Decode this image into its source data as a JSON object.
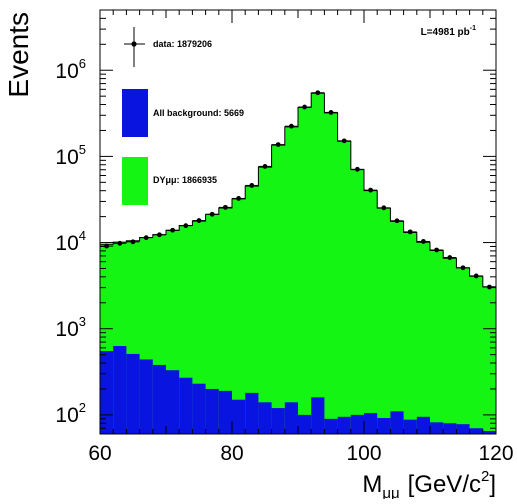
{
  "chart_data": {
    "type": "bar",
    "title": "",
    "luminosity_label": "L=4981 pb",
    "luminosity_unit_exp": "-1",
    "ylabel": "Events",
    "xlabel": {
      "main": "M",
      "sub": "μμ",
      "unit": "[GeV/c",
      "unit_exp": "2",
      "close": "]"
    },
    "x_range": [
      60,
      120
    ],
    "y_range": [
      60,
      5000000
    ],
    "y_scale": "log",
    "grid": false,
    "legend_position": "top-left",
    "x_tick_labels": [
      "60",
      "80",
      "100",
      "120"
    ],
    "y_tick_labels": [
      {
        "base": "10",
        "exp": "2"
      },
      {
        "base": "10",
        "exp": "3"
      },
      {
        "base": "10",
        "exp": "4"
      },
      {
        "base": "10",
        "exp": "5"
      },
      {
        "base": "10",
        "exp": "6"
      }
    ],
    "legend": [
      {
        "label": "data: 1879206",
        "kind": "marker"
      },
      {
        "label": "All background: 5669",
        "kind": "box",
        "color": "#0a14e0"
      },
      {
        "label": "DYμμ: 1866935",
        "kind": "box",
        "color": "#14f514"
      }
    ],
    "bin_edges": [
      60,
      62,
      64,
      66,
      68,
      70,
      72,
      74,
      76,
      78,
      80,
      82,
      84,
      86,
      88,
      90,
      92,
      94,
      96,
      98,
      100,
      102,
      104,
      106,
      108,
      110,
      112,
      114,
      116,
      118,
      120
    ],
    "series": [
      {
        "name": "All background",
        "color": "#0a14e0",
        "values": [
          550,
          630,
          510,
          440,
          380,
          330,
          270,
          230,
          200,
          190,
          150,
          180,
          140,
          120,
          140,
          100,
          160,
          90,
          95,
          100,
          105,
          92,
          110,
          88,
          95,
          82,
          80,
          78,
          70,
          65
        ]
      },
      {
        "name": "DYμμ",
        "color": "#14f514",
        "values": [
          9000,
          9500,
          10000,
          11000,
          12000,
          13500,
          15500,
          17500,
          21000,
          25000,
          32000,
          45000,
          75000,
          135000,
          220000,
          370000,
          540000,
          320000,
          150000,
          70000,
          40000,
          25000,
          17500,
          13000,
          10000,
          8000,
          6500,
          5000,
          4000,
          3000
        ]
      },
      {
        "name": "data",
        "color": "#000000",
        "values": [
          9100,
          9800,
          10200,
          11400,
          12300,
          13900,
          15700,
          18000,
          21300,
          25600,
          32500,
          46000,
          76500,
          137000,
          224000,
          374000,
          548000,
          324000,
          151500,
          70800,
          40600,
          25300,
          17900,
          13300,
          10300,
          8200,
          6700,
          5100,
          4100,
          3050
        ]
      }
    ]
  }
}
